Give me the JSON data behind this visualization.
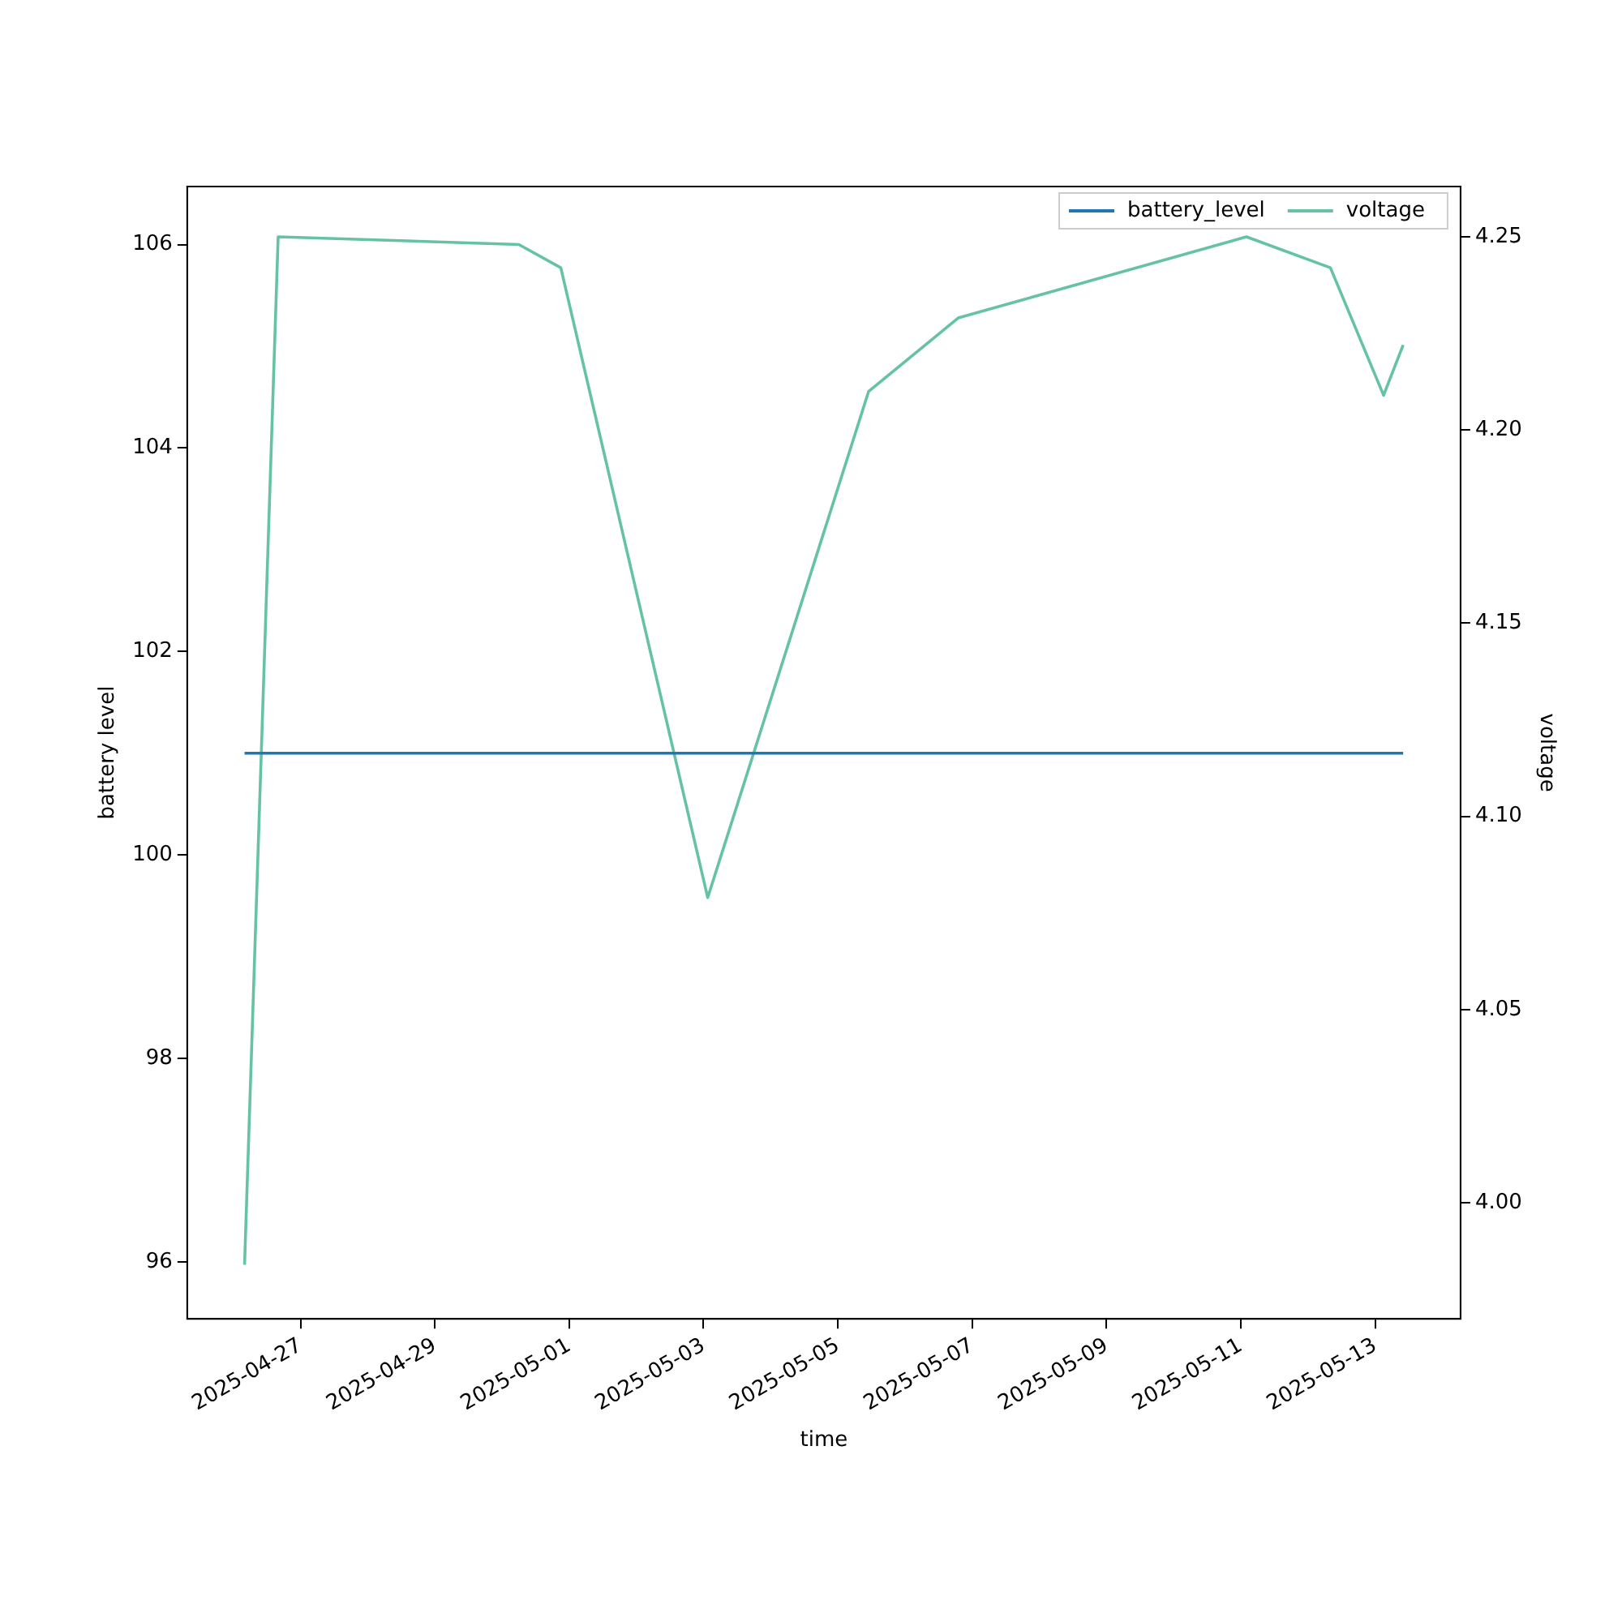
{
  "chart_data": {
    "type": "line",
    "xlabel": "time",
    "ylabel": "battery level",
    "y2label": "voltage",
    "x": [
      "2025-04-26T04:00",
      "2025-04-26T16:00",
      "2025-04-30T06:00",
      "2025-04-30T21:00",
      "2025-05-03T01:30",
      "2025-05-05T11:00",
      "2025-05-06T19:00",
      "2025-05-11T02:00",
      "2025-05-12T08:00",
      "2025-05-13T03:00",
      "2025-05-13T10:00"
    ],
    "series": [
      {
        "name": "battery_level",
        "color": "#1f77b4",
        "values": [
          101,
          101,
          101,
          101,
          101,
          101,
          101,
          101,
          101,
          101,
          101
        ]
      },
      {
        "name": "voltage",
        "color": "#66c2a5",
        "axis": "y2",
        "values": [
          3.984,
          4.25,
          4.248,
          4.242,
          4.079,
          4.21,
          4.229,
          4.25,
          4.242,
          4.209,
          4.222
        ]
      }
    ],
    "xlim": [
      "2025-04-25T07:30",
      "2025-05-14T06:30"
    ],
    "xticks": [
      "2025-04-27",
      "2025-04-29",
      "2025-05-01",
      "2025-05-03",
      "2025-05-05",
      "2025-05-07",
      "2025-05-09",
      "2025-05-11",
      "2025-05-13"
    ],
    "ylim": [
      95.44,
      106.57
    ],
    "yticks": [
      96,
      98,
      100,
      102,
      104,
      106
    ],
    "y2lim": [
      3.97,
      4.263
    ],
    "y2ticks": [
      {
        "value": 4.0,
        "label": "4.00"
      },
      {
        "value": 4.05,
        "label": "4.05"
      },
      {
        "value": 4.1,
        "label": "4.10"
      },
      {
        "value": 4.15,
        "label": "4.15"
      },
      {
        "value": 4.2,
        "label": "4.20"
      },
      {
        "value": 4.25,
        "label": "4.25"
      }
    ],
    "legend": "top right",
    "grid": false,
    "marker": "none",
    "line_style": "solid"
  }
}
